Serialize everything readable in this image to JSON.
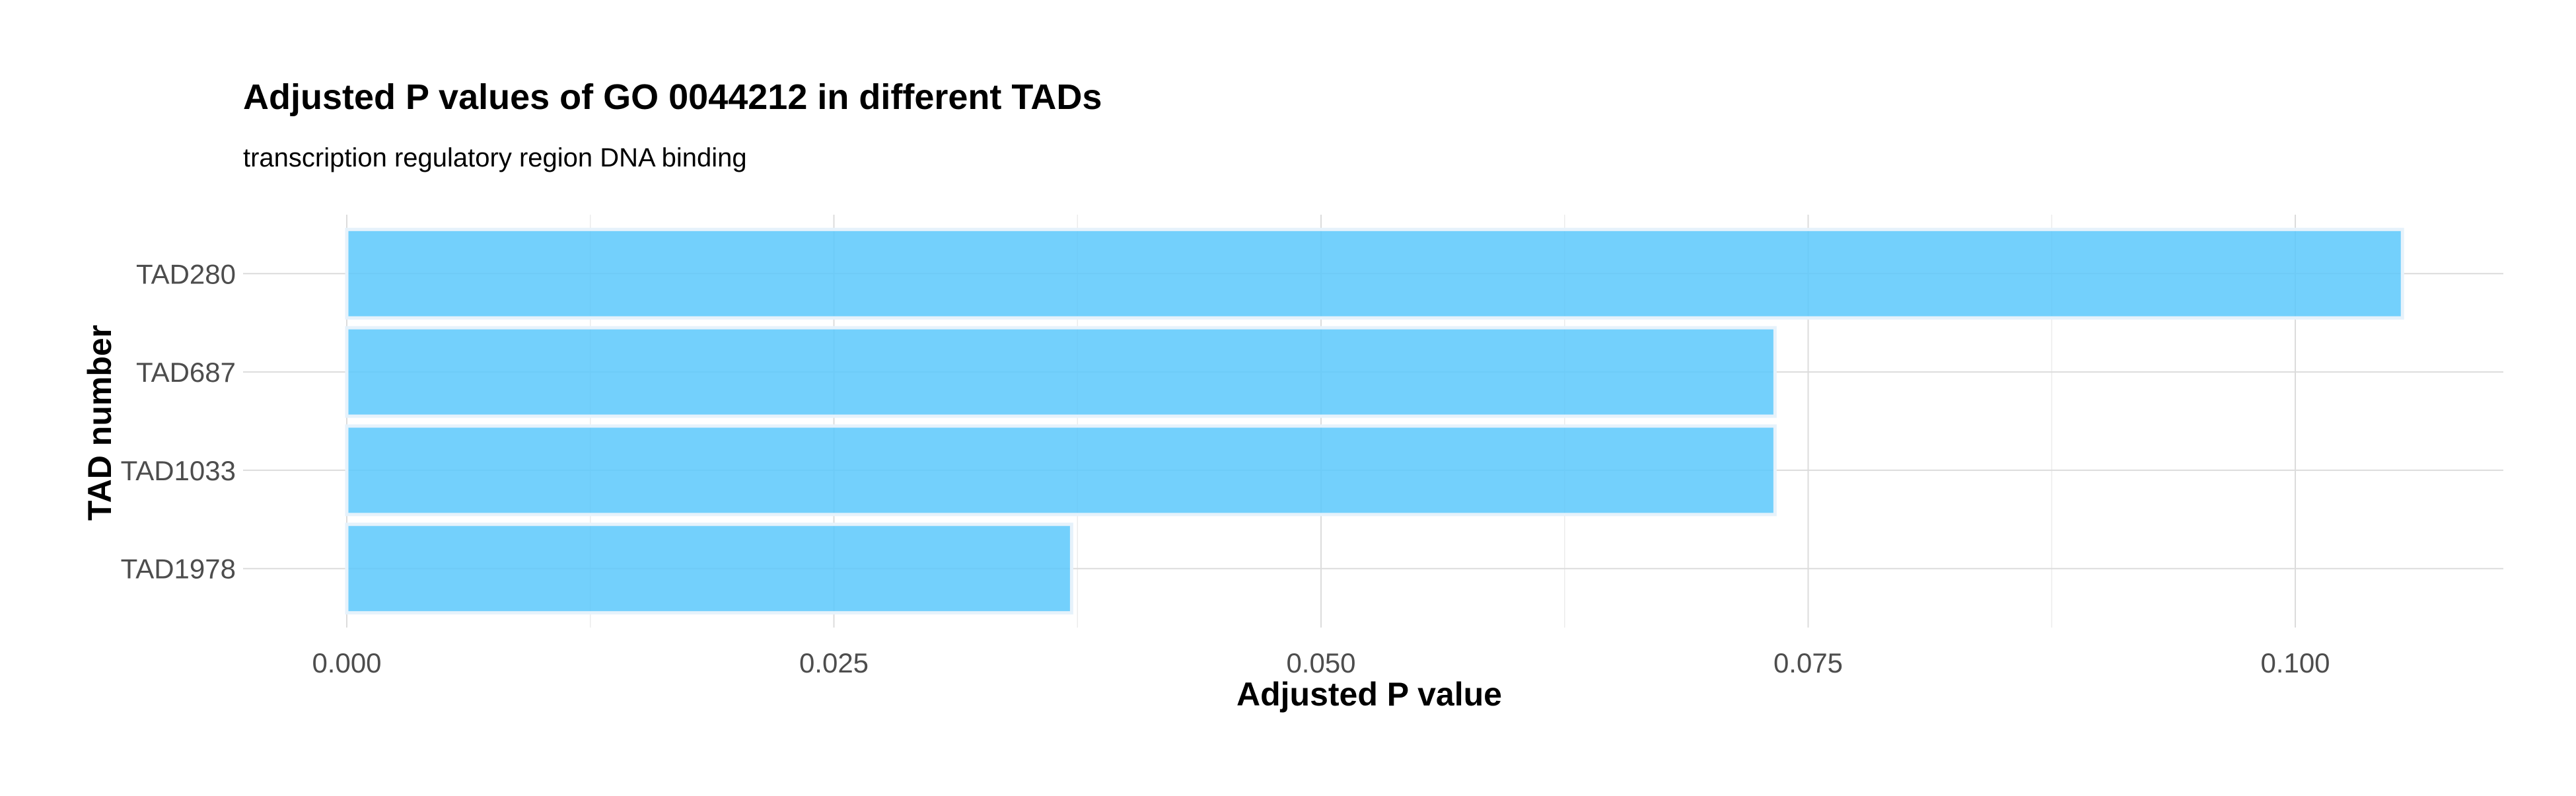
{
  "chart_data": {
    "type": "bar",
    "orientation": "horizontal",
    "title": "Adjusted P values of GO 0044212 in different TADs",
    "subtitle": "transcription regulatory region DNA binding",
    "xlabel": "Adjusted P value",
    "ylabel": "TAD number",
    "categories": [
      "TAD280",
      "TAD687",
      "TAD1033",
      "TAD1978"
    ],
    "values": [
      0.1055,
      0.0733,
      0.0733,
      0.0372
    ],
    "xlim": [
      0,
      0.1083
    ],
    "x_ticks": [
      0.0,
      0.025,
      0.05,
      0.075,
      0.1
    ],
    "x_tick_labels": [
      "0.000",
      "0.025",
      "0.050",
      "0.075",
      "0.100"
    ],
    "bar_color": "#5bc8fb",
    "grid": true,
    "legend": "none"
  }
}
